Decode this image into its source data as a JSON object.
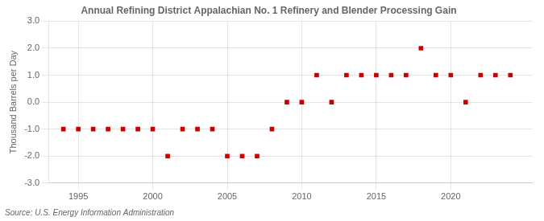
{
  "chart_data": {
    "type": "scatter",
    "title": "Annual Refining District Appalachian No. 1 Refinery and Blender Processing Gain",
    "ylabel": "Thousand Barrels per Day",
    "source": "Source: U.S. Energy Information Administration",
    "x": [
      1994,
      1995,
      1996,
      1997,
      1998,
      1999,
      2000,
      2001,
      2002,
      2003,
      2004,
      2005,
      2006,
      2007,
      2008,
      2009,
      2010,
      2011,
      2012,
      2013,
      2014,
      2015,
      2016,
      2017,
      2018,
      2019,
      2020,
      2021,
      2022,
      2023,
      2024
    ],
    "values": [
      -1,
      -1,
      -1,
      -1,
      -1,
      -1,
      -1,
      -2,
      -1,
      -1,
      -1,
      -2,
      -2,
      -2,
      -1,
      0,
      0,
      1,
      0,
      1,
      1,
      1,
      1,
      1,
      2,
      1,
      1,
      0,
      1,
      1,
      1
    ],
    "color": "#cc0000",
    "marker": "square",
    "xlim": [
      1993.0,
      2025.5
    ],
    "xticks": [
      1995,
      2000,
      2005,
      2010,
      2015,
      2020
    ],
    "ylim": [
      -3.0,
      3.0
    ],
    "yticks": [
      {
        "value": -3.0,
        "label": "-3.0"
      },
      {
        "value": -2.0,
        "label": "-2.0"
      },
      {
        "value": -1.0,
        "label": "-1.0"
      },
      {
        "value": 0.0,
        "label": "0.0"
      },
      {
        "value": 1.0,
        "label": "1.0"
      },
      {
        "value": 2.0,
        "label": "2.0"
      },
      {
        "value": 3.0,
        "label": "3.0"
      }
    ],
    "grid": true
  }
}
